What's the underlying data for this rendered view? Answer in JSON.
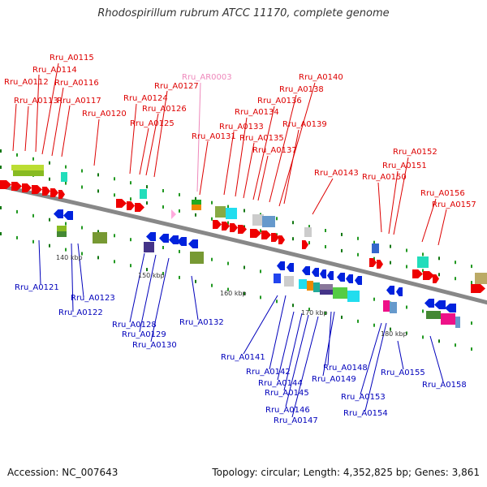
{
  "header": {
    "title": "Rhodospirillum rubrum ATCC 11170, complete genome"
  },
  "footer": {
    "accession": "Accession: NC_007643",
    "summary": "Topology: circular; Length: 4,352,825 bp; Genes: 3,861"
  },
  "colors": {
    "forward_label": "#dd0000",
    "reverse_label": "#0000bb",
    "rna_label": "#ee88bb",
    "backbone": "#888888"
  },
  "scale": {
    "ticks": [
      "140 kbp",
      "150 kbp",
      "160 kbp",
      "170 kbp",
      "180 kbp"
    ]
  },
  "labels": {
    "forward": [
      "Rru_A0112",
      "Rru_A0113",
      "Rru_A0114",
      "Rru_A0115",
      "Rru_A0116",
      "Rru_A0117",
      "Rru_A0120",
      "Rru_A0124",
      "Rru_A0125",
      "Rru_A0126",
      "Rru_A0127",
      "Rru_A0131",
      "Rru_A0133",
      "Rru_A0134",
      "Rru_A0135",
      "Rru_A0136",
      "Rru_A0137",
      "Rru_A0138",
      "Rru_A0139",
      "Rru_A0140",
      "Rru_A0143",
      "Rru_A0150",
      "Rru_A0151",
      "Rru_A0152",
      "Rru_A0156",
      "Rru_A0157"
    ],
    "rna": [
      "Rru_AR0003"
    ],
    "reverse": [
      "Rru_A0121",
      "Rru_A0122",
      "Rru_A0123",
      "Rru_A0128",
      "Rru_A0129",
      "Rru_A0130",
      "Rru_A0132",
      "Rru_A0141",
      "Rru_A0142",
      "Rru_A0144",
      "Rru_A0145",
      "Rru_A0146",
      "Rru_A0147",
      "Rru_A0148",
      "Rru_A0149",
      "Rru_A0153",
      "Rru_A0154",
      "Rru_A0155",
      "Rru_A0158"
    ]
  }
}
